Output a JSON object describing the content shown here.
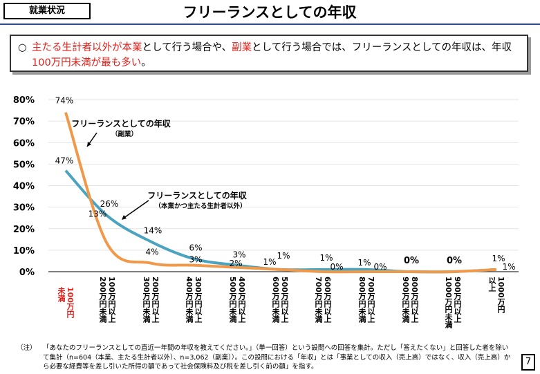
{
  "header": {
    "tag": "就業状況",
    "title": "フリーランスとしての年収"
  },
  "summary": {
    "bullet": "○",
    "parts": [
      {
        "text": "主たる生計者以外が本業",
        "red": true
      },
      {
        "text": "として行う場合や、",
        "red": false
      },
      {
        "text": "副業",
        "red": true
      },
      {
        "text": "として行う場合では、フリーランスとしての年収は、年収",
        "red": false
      },
      {
        "text": "100万円未満が最も多い",
        "red": true
      },
      {
        "text": "。",
        "red": false
      }
    ]
  },
  "chart_data": {
    "type": "line",
    "categories": [
      "100万円未満",
      "100万円以上200万円未満",
      "200万円以上300万円未満",
      "300万円以上400万円未満",
      "400万円以上500万円未満",
      "500万円以上600万円未満",
      "600万円以上700万円未満",
      "700万円以上800万円未満",
      "800万円以上900万円未満",
      "900万円以上1000万円未満",
      "1000万円以上"
    ],
    "category_lines": [
      [
        "100万円",
        "未満"
      ],
      [
        "100万円以上",
        "200万円未満"
      ],
      [
        "200万円以上",
        "300万円未満"
      ],
      [
        "300万円以上",
        "400万円未満"
      ],
      [
        "400万円以上",
        "500万円未満"
      ],
      [
        "500万円以上",
        "600万円未満"
      ],
      [
        "600万円以上",
        "700万円未満"
      ],
      [
        "700万円以上",
        "800万円未満"
      ],
      [
        "800万円以上",
        "900万円未満"
      ],
      [
        "900万円以上",
        "1000万円未満"
      ],
      [
        "1000万円",
        "以上"
      ]
    ],
    "yticks": [
      "0%",
      "10%",
      "20%",
      "30%",
      "40%",
      "50%",
      "60%",
      "70%",
      "80%"
    ],
    "ylim": [
      0,
      80
    ],
    "series": [
      {
        "name": "フリーランスとしての年収",
        "sub": "（本業かつ主たる生計者以外）",
        "color": "#4ba3bf",
        "values": [
          47,
          26,
          14,
          6,
          3,
          1,
          1,
          1,
          0,
          0,
          1
        ]
      },
      {
        "name": "フリーランスとしての年収",
        "sub": "（副業）",
        "color": "#f0994a",
        "values": [
          74,
          13,
          4,
          3,
          2,
          1,
          0,
          0,
          0,
          0,
          1
        ]
      }
    ],
    "first_category_color": "#e0201b"
  },
  "note": {
    "label": "（注）",
    "text": "「あなたのフリーランスとしての直近一年間の年収を教えてください。」（単一回答）という設問への回答を集計。ただし「答えたくない」と回答した者を除いて集計（n=604（本業、主たる生計者以外）、n=3,062（副業））。この設問における「年収」とは「事業としての収入（売上高）ではなく、収入（売上高）から必要な経費等を差し引いた所得の額であって社会保険料及び税を差し引く前の額」を指す。"
  },
  "page": "7"
}
